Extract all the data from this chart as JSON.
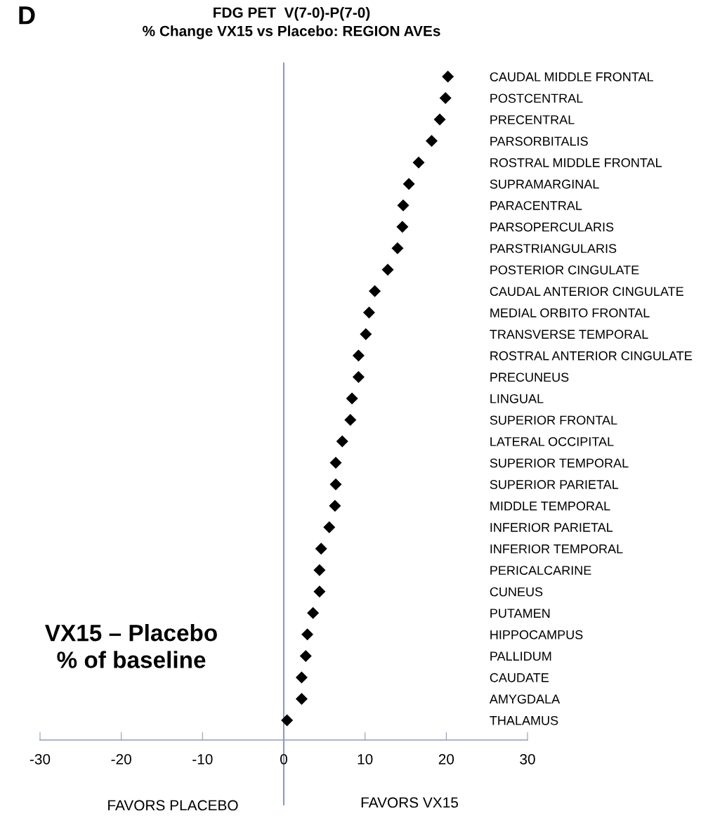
{
  "chart_data": {
    "type": "scatter",
    "orientation": "horizontal",
    "title": "FDG PET  V(7-0)-P(7-0)\n% Change VX15 vs Placebo: REGION AVEs",
    "categories": [
      "CAUDAL MIDDLE FRONTAL",
      "POSTCENTRAL",
      "PRECENTRAL",
      "PARSORBITALIS",
      "ROSTRAL MIDDLE FRONTAL",
      "SUPRAMARGINAL",
      "PARACENTRAL",
      "PARSOPERCULARIS",
      "PARSTRIANGULARIS",
      "POSTERIOR CINGULATE",
      "CAUDAL ANTERIOR CINGULATE",
      "MEDIAL ORBITO FRONTAL",
      "TRANSVERSE TEMPORAL",
      "ROSTRAL ANTERIOR CINGULATE",
      "PRECUNEUS",
      "LINGUAL",
      "SUPERIOR FRONTAL",
      "LATERAL OCCIPITAL",
      "SUPERIOR TEMPORAL",
      "SUPERIOR PARIETAL",
      "MIDDLE TEMPORAL",
      "INFERIOR PARIETAL",
      "INFERIOR TEMPORAL",
      "PERICALCARINE",
      "CUNEUS",
      "PUTAMEN",
      "HIPPOCAMPUS",
      "PALLIDUM",
      "CAUDATE",
      "AMYGDALA",
      "THALAMUS"
    ],
    "values": [
      20.2,
      19.9,
      19.2,
      18.2,
      16.6,
      15.4,
      14.7,
      14.6,
      14.0,
      12.8,
      11.2,
      10.5,
      10.1,
      9.2,
      9.2,
      8.4,
      8.2,
      7.2,
      6.4,
      6.4,
      6.3,
      5.6,
      4.6,
      4.4,
      4.4,
      3.6,
      2.9,
      2.7,
      2.2,
      2.2,
      0.4
    ],
    "color": "#000000",
    "marker": "diamond",
    "xlim": [
      -30,
      30
    ],
    "xticks": [
      -30,
      -20,
      -10,
      0,
      10,
      20,
      30
    ],
    "grid": false,
    "ref_lines": [
      {
        "axis": "x",
        "value": 0,
        "color": "#8c9bc4"
      }
    ],
    "annotations": [
      "D",
      "VX15 – Placebo\n% of baseline",
      "FAVORS PLACEBO",
      "FAVORS VX15"
    ]
  }
}
